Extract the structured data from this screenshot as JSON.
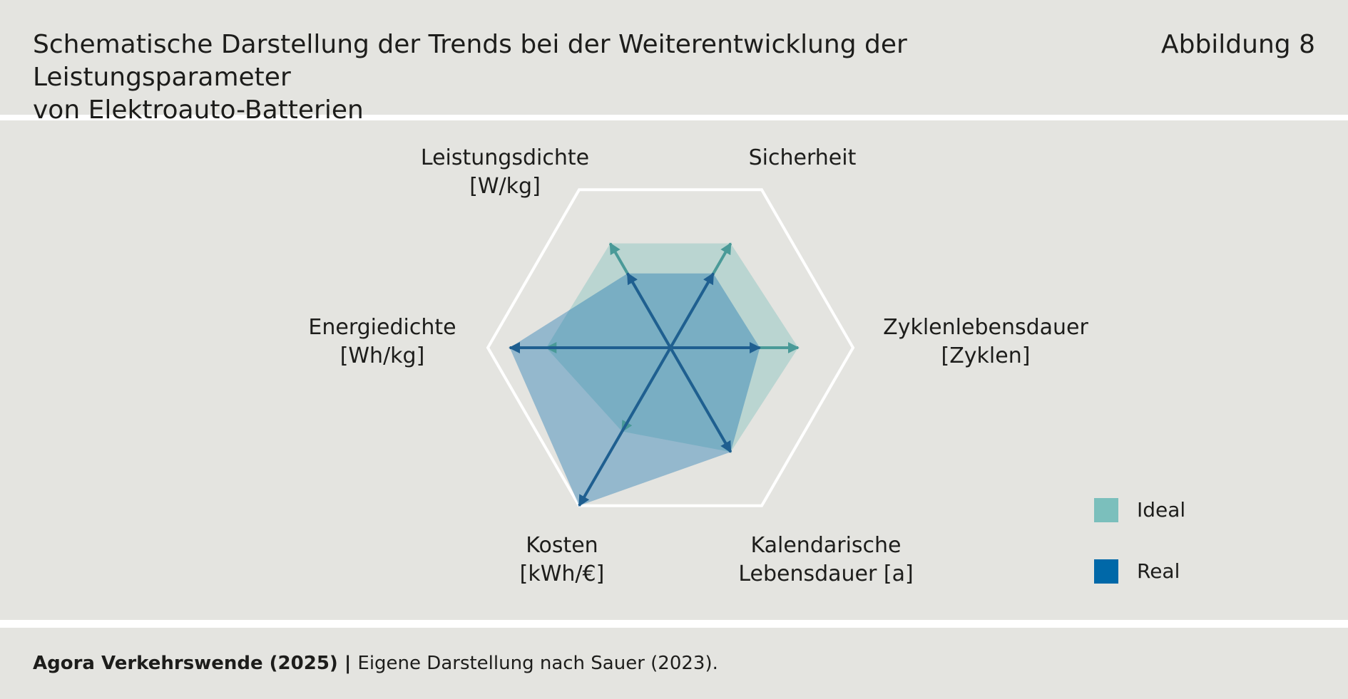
{
  "header": {
    "title_line1": "Schematische Darstellung der Trends bei der Weiterentwicklung der Leistungsparameter",
    "title_line2": "von Elektroauto-Batterien",
    "figure_label": "Abbildung 8"
  },
  "footer": {
    "source_bold": "Agora Verkehrswende (2025)",
    "separator": " | ",
    "source_text": "Eigene Darstellung nach Sauer (2023)."
  },
  "colors": {
    "panel_bg": "#e4e4e0",
    "ideal": "#7bbfbc",
    "real": "#0068a8",
    "ideal_arrow": "#4a9a98",
    "real_arrow": "#1f5f90",
    "grid": "#ffffff"
  },
  "chart_data": {
    "type": "radar",
    "axes": [
      {
        "label_lines": [
          "Leistungsdichte",
          "[W/kg]"
        ]
      },
      {
        "label_lines": [
          "Sicherheit"
        ]
      },
      {
        "label_lines": [
          "Zyklenlebensdauer",
          "[Zyklen]"
        ]
      },
      {
        "label_lines": [
          "Kalendarische",
          "Lebensdauer [a]"
        ]
      },
      {
        "label_lines": [
          "Kosten",
          "[kWh/€]"
        ]
      },
      {
        "label_lines": [
          "Energiedichte",
          "[Wh/kg]"
        ]
      }
    ],
    "rmax": 1.0,
    "series": [
      {
        "name": "Ideal",
        "values": [
          0.66,
          0.66,
          0.7,
          0.66,
          0.53,
          0.68
        ]
      },
      {
        "name": "Real",
        "values": [
          0.47,
          0.47,
          0.49,
          0.66,
          1.0,
          0.88
        ]
      }
    ],
    "legend": "right"
  }
}
